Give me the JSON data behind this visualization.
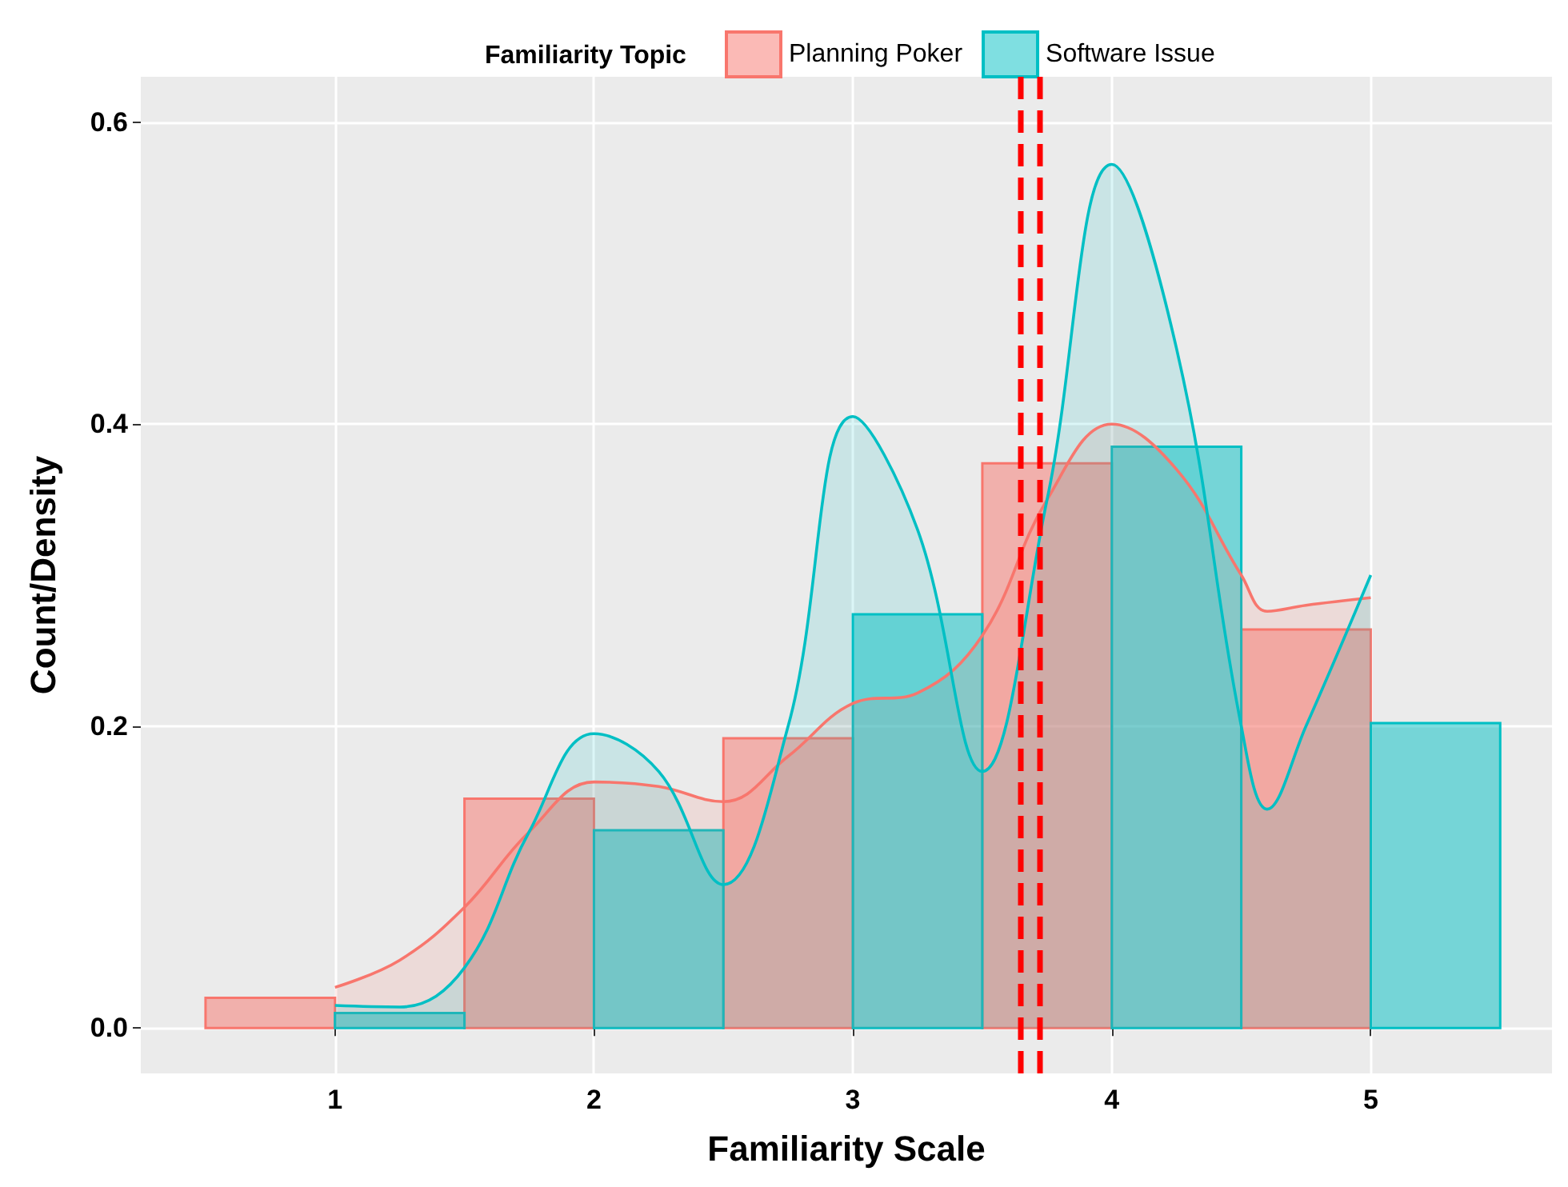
{
  "chart_data": {
    "type": "histogram",
    "xlabel": "Familiarity Scale",
    "ylabel": "Count/Density",
    "legend_title": "Familiarity Topic",
    "legend": "top",
    "grid": true,
    "xlim": [
      0.25,
      5.7
    ],
    "xticks": [
      1,
      2,
      3,
      4,
      5
    ],
    "ylim": [
      -0.03,
      0.63
    ],
    "yticks": [
      {
        "value": 0,
        "label": "0.0"
      },
      {
        "value": 0.2,
        "label": "0.2"
      },
      {
        "value": 0.4,
        "label": "0.4"
      },
      {
        "value": 0.6,
        "label": "0.6"
      }
    ],
    "series": [
      {
        "name": "Planning Poker",
        "color": "#f8766d",
        "bins": [
          0.5,
          1,
          1.5,
          2,
          2.5,
          3,
          3.5,
          4,
          4.5,
          5
        ],
        "values": [
          0.02,
          0,
          0.152,
          0,
          0.192,
          0,
          0.374,
          0,
          0.264
        ]
      },
      {
        "name": "Software Issue",
        "color": "#00bfc4",
        "bins": [
          1,
          1.5,
          2,
          2.5,
          3,
          3.5,
          4,
          4.5,
          5,
          5.5
        ],
        "values": [
          0.01,
          0,
          0.131,
          0,
          0.274,
          0,
          0.385,
          0,
          0.202
        ]
      },
      {
        "type": "area",
        "color": "#f8766d",
        "x": [
          1,
          1.25,
          1.5,
          1.75,
          2,
          2.25,
          2.5,
          2.75,
          3,
          3.25,
          3.5,
          3.75,
          4,
          4.25,
          4.5,
          4.6,
          4.75,
          5
        ],
        "values": [
          0.027,
          0.045,
          0.08,
          0.13,
          0.163,
          0.16,
          0.15,
          0.18,
          0.215,
          0.222,
          0.26,
          0.35,
          0.4,
          0.37,
          0.3,
          0.276,
          0.28,
          0.285
        ]
      },
      {
        "type": "area",
        "color": "#00bfc4",
        "x": [
          1,
          1.25,
          1.5,
          1.75,
          2,
          2.25,
          2.5,
          2.75,
          3,
          3.25,
          3.5,
          3.75,
          4,
          4.25,
          4.5,
          4.6,
          4.75,
          5
        ],
        "values": [
          0.015,
          0.014,
          0.04,
          0.13,
          0.195,
          0.17,
          0.095,
          0.2,
          0.405,
          0.33,
          0.17,
          0.35,
          0.572,
          0.45,
          0.2,
          0.145,
          0.2,
          0.3
        ]
      }
    ],
    "ref_lines": [
      {
        "axis": "x",
        "value": 3.65,
        "color": "#ff0000",
        "line_style": "dashed"
      },
      {
        "axis": "x",
        "value": 3.72,
        "color": "#ff0000",
        "line_style": "dashed"
      }
    ]
  }
}
